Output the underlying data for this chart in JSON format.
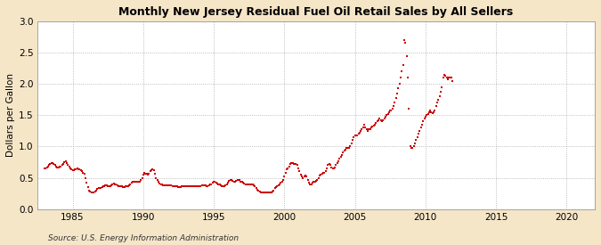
{
  "title": "Monthly New Jersey Residual Fuel Oil Retail Sales by All Sellers",
  "ylabel": "Dollars per Gallon",
  "source": "Source: U.S. Energy Information Administration",
  "xlim": [
    1982.5,
    2022
  ],
  "ylim": [
    0.0,
    3.0
  ],
  "xticks": [
    1985,
    1990,
    1995,
    2000,
    2005,
    2010,
    2015,
    2020
  ],
  "yticks": [
    0.0,
    0.5,
    1.0,
    1.5,
    2.0,
    2.5,
    3.0
  ],
  "dot_color": "#cc0000",
  "background_color": "#f5e6c8",
  "plot_background": "#ffffff",
  "data": [
    [
      1983.0,
      0.65
    ],
    [
      1983.08,
      0.65
    ],
    [
      1983.17,
      0.67
    ],
    [
      1983.25,
      0.68
    ],
    [
      1983.33,
      0.7
    ],
    [
      1983.42,
      0.72
    ],
    [
      1983.5,
      0.73
    ],
    [
      1983.58,
      0.73
    ],
    [
      1983.67,
      0.72
    ],
    [
      1983.75,
      0.7
    ],
    [
      1983.83,
      0.68
    ],
    [
      1983.92,
      0.66
    ],
    [
      1984.0,
      0.67
    ],
    [
      1984.08,
      0.68
    ],
    [
      1984.17,
      0.68
    ],
    [
      1984.25,
      0.7
    ],
    [
      1984.33,
      0.72
    ],
    [
      1984.42,
      0.75
    ],
    [
      1984.5,
      0.76
    ],
    [
      1984.58,
      0.74
    ],
    [
      1984.67,
      0.71
    ],
    [
      1984.75,
      0.68
    ],
    [
      1984.83,
      0.65
    ],
    [
      1984.92,
      0.63
    ],
    [
      1985.0,
      0.62
    ],
    [
      1985.08,
      0.62
    ],
    [
      1985.17,
      0.63
    ],
    [
      1985.25,
      0.64
    ],
    [
      1985.33,
      0.65
    ],
    [
      1985.42,
      0.64
    ],
    [
      1985.5,
      0.63
    ],
    [
      1985.58,
      0.62
    ],
    [
      1985.67,
      0.6
    ],
    [
      1985.75,
      0.58
    ],
    [
      1985.83,
      0.57
    ],
    [
      1985.92,
      0.5
    ],
    [
      1986.0,
      0.42
    ],
    [
      1986.08,
      0.35
    ],
    [
      1986.17,
      0.3
    ],
    [
      1986.25,
      0.28
    ],
    [
      1986.33,
      0.27
    ],
    [
      1986.42,
      0.26
    ],
    [
      1986.5,
      0.27
    ],
    [
      1986.58,
      0.28
    ],
    [
      1986.67,
      0.3
    ],
    [
      1986.75,
      0.32
    ],
    [
      1986.83,
      0.33
    ],
    [
      1986.92,
      0.33
    ],
    [
      1987.0,
      0.34
    ],
    [
      1987.08,
      0.35
    ],
    [
      1987.17,
      0.36
    ],
    [
      1987.25,
      0.37
    ],
    [
      1987.33,
      0.38
    ],
    [
      1987.42,
      0.38
    ],
    [
      1987.5,
      0.37
    ],
    [
      1987.58,
      0.37
    ],
    [
      1987.67,
      0.37
    ],
    [
      1987.75,
      0.38
    ],
    [
      1987.83,
      0.4
    ],
    [
      1987.92,
      0.41
    ],
    [
      1988.0,
      0.4
    ],
    [
      1988.08,
      0.39
    ],
    [
      1988.17,
      0.38
    ],
    [
      1988.25,
      0.37
    ],
    [
      1988.33,
      0.36
    ],
    [
      1988.42,
      0.36
    ],
    [
      1988.5,
      0.36
    ],
    [
      1988.58,
      0.35
    ],
    [
      1988.67,
      0.35
    ],
    [
      1988.75,
      0.36
    ],
    [
      1988.83,
      0.36
    ],
    [
      1988.92,
      0.36
    ],
    [
      1989.0,
      0.38
    ],
    [
      1989.08,
      0.4
    ],
    [
      1989.17,
      0.42
    ],
    [
      1989.25,
      0.43
    ],
    [
      1989.33,
      0.44
    ],
    [
      1989.42,
      0.44
    ],
    [
      1989.5,
      0.44
    ],
    [
      1989.58,
      0.43
    ],
    [
      1989.67,
      0.43
    ],
    [
      1989.75,
      0.44
    ],
    [
      1989.83,
      0.46
    ],
    [
      1989.92,
      0.5
    ],
    [
      1990.0,
      0.55
    ],
    [
      1990.08,
      0.58
    ],
    [
      1990.17,
      0.57
    ],
    [
      1990.25,
      0.56
    ],
    [
      1990.33,
      0.55
    ],
    [
      1990.42,
      0.56
    ],
    [
      1990.5,
      0.6
    ],
    [
      1990.58,
      0.62
    ],
    [
      1990.67,
      0.63
    ],
    [
      1990.75,
      0.62
    ],
    [
      1990.83,
      0.57
    ],
    [
      1990.92,
      0.5
    ],
    [
      1991.0,
      0.46
    ],
    [
      1991.08,
      0.43
    ],
    [
      1991.17,
      0.41
    ],
    [
      1991.25,
      0.4
    ],
    [
      1991.33,
      0.39
    ],
    [
      1991.42,
      0.38
    ],
    [
      1991.5,
      0.38
    ],
    [
      1991.58,
      0.38
    ],
    [
      1991.67,
      0.38
    ],
    [
      1991.75,
      0.38
    ],
    [
      1991.83,
      0.38
    ],
    [
      1991.92,
      0.38
    ],
    [
      1992.0,
      0.38
    ],
    [
      1992.08,
      0.37
    ],
    [
      1992.17,
      0.36
    ],
    [
      1992.25,
      0.36
    ],
    [
      1992.33,
      0.36
    ],
    [
      1992.42,
      0.36
    ],
    [
      1992.5,
      0.35
    ],
    [
      1992.58,
      0.35
    ],
    [
      1992.67,
      0.35
    ],
    [
      1992.75,
      0.36
    ],
    [
      1992.83,
      0.36
    ],
    [
      1992.92,
      0.37
    ],
    [
      1993.0,
      0.37
    ],
    [
      1993.08,
      0.37
    ],
    [
      1993.17,
      0.37
    ],
    [
      1993.25,
      0.37
    ],
    [
      1993.33,
      0.37
    ],
    [
      1993.42,
      0.37
    ],
    [
      1993.5,
      0.37
    ],
    [
      1993.58,
      0.37
    ],
    [
      1993.67,
      0.37
    ],
    [
      1993.75,
      0.37
    ],
    [
      1993.83,
      0.36
    ],
    [
      1993.92,
      0.36
    ],
    [
      1994.0,
      0.37
    ],
    [
      1994.08,
      0.37
    ],
    [
      1994.17,
      0.38
    ],
    [
      1994.25,
      0.38
    ],
    [
      1994.33,
      0.38
    ],
    [
      1994.42,
      0.38
    ],
    [
      1994.5,
      0.37
    ],
    [
      1994.58,
      0.37
    ],
    [
      1994.67,
      0.38
    ],
    [
      1994.75,
      0.39
    ],
    [
      1994.83,
      0.4
    ],
    [
      1994.92,
      0.42
    ],
    [
      1995.0,
      0.43
    ],
    [
      1995.08,
      0.43
    ],
    [
      1995.17,
      0.42
    ],
    [
      1995.25,
      0.41
    ],
    [
      1995.33,
      0.4
    ],
    [
      1995.42,
      0.39
    ],
    [
      1995.5,
      0.38
    ],
    [
      1995.58,
      0.37
    ],
    [
      1995.67,
      0.37
    ],
    [
      1995.75,
      0.37
    ],
    [
      1995.83,
      0.38
    ],
    [
      1995.92,
      0.39
    ],
    [
      1996.0,
      0.42
    ],
    [
      1996.08,
      0.45
    ],
    [
      1996.17,
      0.46
    ],
    [
      1996.25,
      0.46
    ],
    [
      1996.33,
      0.45
    ],
    [
      1996.42,
      0.44
    ],
    [
      1996.5,
      0.44
    ],
    [
      1996.58,
      0.45
    ],
    [
      1996.67,
      0.46
    ],
    [
      1996.75,
      0.47
    ],
    [
      1996.83,
      0.46
    ],
    [
      1996.92,
      0.44
    ],
    [
      1997.0,
      0.43
    ],
    [
      1997.08,
      0.42
    ],
    [
      1997.17,
      0.41
    ],
    [
      1997.25,
      0.4
    ],
    [
      1997.33,
      0.4
    ],
    [
      1997.42,
      0.4
    ],
    [
      1997.5,
      0.4
    ],
    [
      1997.58,
      0.4
    ],
    [
      1997.67,
      0.4
    ],
    [
      1997.75,
      0.39
    ],
    [
      1997.83,
      0.38
    ],
    [
      1997.92,
      0.36
    ],
    [
      1998.0,
      0.33
    ],
    [
      1998.08,
      0.31
    ],
    [
      1998.17,
      0.29
    ],
    [
      1998.25,
      0.28
    ],
    [
      1998.33,
      0.27
    ],
    [
      1998.42,
      0.27
    ],
    [
      1998.5,
      0.27
    ],
    [
      1998.58,
      0.27
    ],
    [
      1998.67,
      0.27
    ],
    [
      1998.75,
      0.27
    ],
    [
      1998.83,
      0.27
    ],
    [
      1998.92,
      0.27
    ],
    [
      1999.0,
      0.27
    ],
    [
      1999.08,
      0.27
    ],
    [
      1999.17,
      0.28
    ],
    [
      1999.25,
      0.3
    ],
    [
      1999.33,
      0.33
    ],
    [
      1999.42,
      0.35
    ],
    [
      1999.5,
      0.36
    ],
    [
      1999.58,
      0.38
    ],
    [
      1999.67,
      0.4
    ],
    [
      1999.75,
      0.42
    ],
    [
      1999.83,
      0.44
    ],
    [
      1999.92,
      0.47
    ],
    [
      2000.0,
      0.52
    ],
    [
      2000.08,
      0.58
    ],
    [
      2000.17,
      0.63
    ],
    [
      2000.25,
      0.65
    ],
    [
      2000.33,
      0.68
    ],
    [
      2000.42,
      0.72
    ],
    [
      2000.5,
      0.73
    ],
    [
      2000.58,
      0.73
    ],
    [
      2000.67,
      0.72
    ],
    [
      2000.75,
      0.72
    ],
    [
      2000.83,
      0.72
    ],
    [
      2000.92,
      0.7
    ],
    [
      2001.0,
      0.65
    ],
    [
      2001.08,
      0.6
    ],
    [
      2001.17,
      0.55
    ],
    [
      2001.25,
      0.52
    ],
    [
      2001.33,
      0.5
    ],
    [
      2001.42,
      0.52
    ],
    [
      2001.5,
      0.53
    ],
    [
      2001.58,
      0.52
    ],
    [
      2001.67,
      0.47
    ],
    [
      2001.75,
      0.42
    ],
    [
      2001.83,
      0.4
    ],
    [
      2001.92,
      0.4
    ],
    [
      2002.0,
      0.42
    ],
    [
      2002.08,
      0.43
    ],
    [
      2002.17,
      0.44
    ],
    [
      2002.25,
      0.45
    ],
    [
      2002.33,
      0.47
    ],
    [
      2002.42,
      0.5
    ],
    [
      2002.5,
      0.53
    ],
    [
      2002.58,
      0.55
    ],
    [
      2002.67,
      0.57
    ],
    [
      2002.75,
      0.58
    ],
    [
      2002.83,
      0.58
    ],
    [
      2002.92,
      0.6
    ],
    [
      2003.0,
      0.65
    ],
    [
      2003.08,
      0.7
    ],
    [
      2003.17,
      0.72
    ],
    [
      2003.25,
      0.7
    ],
    [
      2003.33,
      0.67
    ],
    [
      2003.42,
      0.65
    ],
    [
      2003.5,
      0.65
    ],
    [
      2003.58,
      0.67
    ],
    [
      2003.67,
      0.7
    ],
    [
      2003.75,
      0.73
    ],
    [
      2003.83,
      0.76
    ],
    [
      2003.92,
      0.8
    ],
    [
      2004.0,
      0.83
    ],
    [
      2004.08,
      0.87
    ],
    [
      2004.17,
      0.9
    ],
    [
      2004.25,
      0.93
    ],
    [
      2004.33,
      0.95
    ],
    [
      2004.42,
      0.97
    ],
    [
      2004.5,
      0.97
    ],
    [
      2004.58,
      0.98
    ],
    [
      2004.67,
      1.0
    ],
    [
      2004.75,
      1.05
    ],
    [
      2004.83,
      1.1
    ],
    [
      2004.92,
      1.15
    ],
    [
      2005.0,
      1.17
    ],
    [
      2005.08,
      1.18
    ],
    [
      2005.17,
      1.18
    ],
    [
      2005.25,
      1.2
    ],
    [
      2005.33,
      1.22
    ],
    [
      2005.42,
      1.25
    ],
    [
      2005.5,
      1.28
    ],
    [
      2005.58,
      1.3
    ],
    [
      2005.67,
      1.35
    ],
    [
      2005.75,
      1.3
    ],
    [
      2005.83,
      1.28
    ],
    [
      2005.92,
      1.25
    ],
    [
      2006.0,
      1.27
    ],
    [
      2006.08,
      1.28
    ],
    [
      2006.17,
      1.3
    ],
    [
      2006.25,
      1.32
    ],
    [
      2006.33,
      1.33
    ],
    [
      2006.42,
      1.35
    ],
    [
      2006.5,
      1.38
    ],
    [
      2006.58,
      1.4
    ],
    [
      2006.67,
      1.42
    ],
    [
      2006.75,
      1.45
    ],
    [
      2006.83,
      1.42
    ],
    [
      2006.92,
      1.4
    ],
    [
      2007.0,
      1.42
    ],
    [
      2007.08,
      1.45
    ],
    [
      2007.17,
      1.47
    ],
    [
      2007.25,
      1.5
    ],
    [
      2007.33,
      1.52
    ],
    [
      2007.42,
      1.55
    ],
    [
      2007.5,
      1.57
    ],
    [
      2007.58,
      1.58
    ],
    [
      2007.67,
      1.6
    ],
    [
      2007.75,
      1.65
    ],
    [
      2007.83,
      1.7
    ],
    [
      2007.92,
      1.78
    ],
    [
      2008.0,
      1.85
    ],
    [
      2008.08,
      1.93
    ],
    [
      2008.17,
      2.0
    ],
    [
      2008.25,
      2.1
    ],
    [
      2008.33,
      2.2
    ],
    [
      2008.42,
      2.3
    ],
    [
      2008.5,
      2.7
    ],
    [
      2008.58,
      2.65
    ],
    [
      2008.67,
      2.45
    ],
    [
      2008.75,
      2.1
    ],
    [
      2008.83,
      1.6
    ],
    [
      2008.92,
      1.0
    ],
    [
      2009.0,
      0.97
    ],
    [
      2009.08,
      0.98
    ],
    [
      2009.17,
      1.0
    ],
    [
      2009.25,
      1.05
    ],
    [
      2009.33,
      1.1
    ],
    [
      2009.42,
      1.15
    ],
    [
      2009.5,
      1.2
    ],
    [
      2009.58,
      1.25
    ],
    [
      2009.67,
      1.3
    ],
    [
      2009.75,
      1.35
    ],
    [
      2009.83,
      1.4
    ],
    [
      2009.92,
      1.45
    ],
    [
      2010.0,
      1.48
    ],
    [
      2010.08,
      1.5
    ],
    [
      2010.17,
      1.52
    ],
    [
      2010.25,
      1.55
    ],
    [
      2010.33,
      1.57
    ],
    [
      2010.42,
      1.55
    ],
    [
      2010.5,
      1.53
    ],
    [
      2010.58,
      1.55
    ],
    [
      2010.67,
      1.58
    ],
    [
      2010.75,
      1.65
    ],
    [
      2010.83,
      1.7
    ],
    [
      2010.92,
      1.75
    ],
    [
      2011.0,
      1.8
    ],
    [
      2011.08,
      1.87
    ],
    [
      2011.17,
      1.95
    ],
    [
      2011.25,
      2.1
    ],
    [
      2011.33,
      2.15
    ],
    [
      2011.42,
      2.13
    ],
    [
      2011.5,
      2.1
    ],
    [
      2011.58,
      2.08
    ],
    [
      2011.67,
      2.1
    ],
    [
      2011.75,
      2.1
    ],
    [
      2011.83,
      2.1
    ],
    [
      2011.92,
      2.05
    ]
  ]
}
